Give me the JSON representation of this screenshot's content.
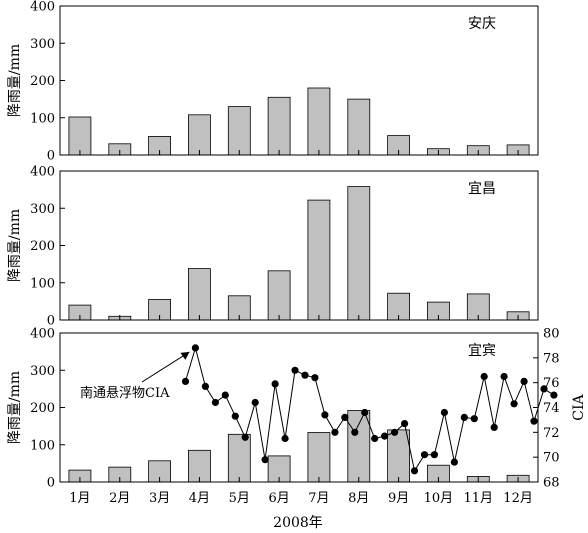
{
  "chart_data": {
    "type": "bar",
    "xlabel": "2008年",
    "categories": [
      "1月",
      "2月",
      "3月",
      "4月",
      "5月",
      "6月",
      "7月",
      "8月",
      "9月",
      "10月",
      "11月",
      "12月"
    ],
    "panels": [
      {
        "station": "安庆",
        "ylabel": "降雨量/mm",
        "ylim": [
          0,
          400
        ],
        "yticks": [
          0,
          100,
          200,
          300,
          400
        ],
        "values": [
          102,
          30,
          50,
          108,
          130,
          155,
          180,
          150,
          52,
          17,
          25,
          27
        ]
      },
      {
        "station": "宜昌",
        "ylabel": "降雨量/mm",
        "ylim": [
          0,
          400
        ],
        "yticks": [
          0,
          100,
          200,
          300,
          400
        ],
        "values": [
          40,
          10,
          55,
          138,
          65,
          132,
          322,
          358,
          72,
          48,
          70,
          22
        ]
      },
      {
        "station": "宜宾",
        "ylabel": "降雨量/mm",
        "ylim": [
          0,
          400
        ],
        "yticks": [
          0,
          100,
          200,
          300,
          400
        ],
        "values": [
          32,
          40,
          57,
          85,
          128,
          70,
          133,
          192,
          140,
          45,
          15,
          18
        ],
        "secondary": {
          "ylabel": "CIA",
          "ylim": [
            68,
            80
          ],
          "yticks": [
            68,
            70,
            72,
            74,
            76,
            78,
            80
          ],
          "series_label": "南通悬浮物CIA",
          "x": [
            3.65,
            3.9,
            4.15,
            4.4,
            4.65,
            4.9,
            5.15,
            5.4,
            5.65,
            5.9,
            6.15,
            6.4,
            6.65,
            6.9,
            7.15,
            7.4,
            7.65,
            7.9,
            8.15,
            8.4,
            8.65,
            8.9,
            9.15,
            9.4,
            9.65,
            9.9,
            10.15,
            10.4,
            10.65,
            10.9,
            11.15,
            11.4,
            11.65,
            11.9,
            12.15,
            12.4,
            12.65,
            12.9
          ],
          "y": [
            76.1,
            78.8,
            75.7,
            74.4,
            75.0,
            73.3,
            71.6,
            74.4,
            69.8,
            75.9,
            71.5,
            77.0,
            76.6,
            76.4,
            73.4,
            72.0,
            73.2,
            72.0,
            73.6,
            71.5,
            71.7,
            72.0,
            72.7,
            68.9,
            70.2,
            70.2,
            73.6,
            69.6,
            73.2,
            73.1,
            76.5,
            72.4,
            76.5,
            74.3,
            76.1,
            72.9,
            75.5,
            75.0
          ]
        }
      }
    ]
  }
}
